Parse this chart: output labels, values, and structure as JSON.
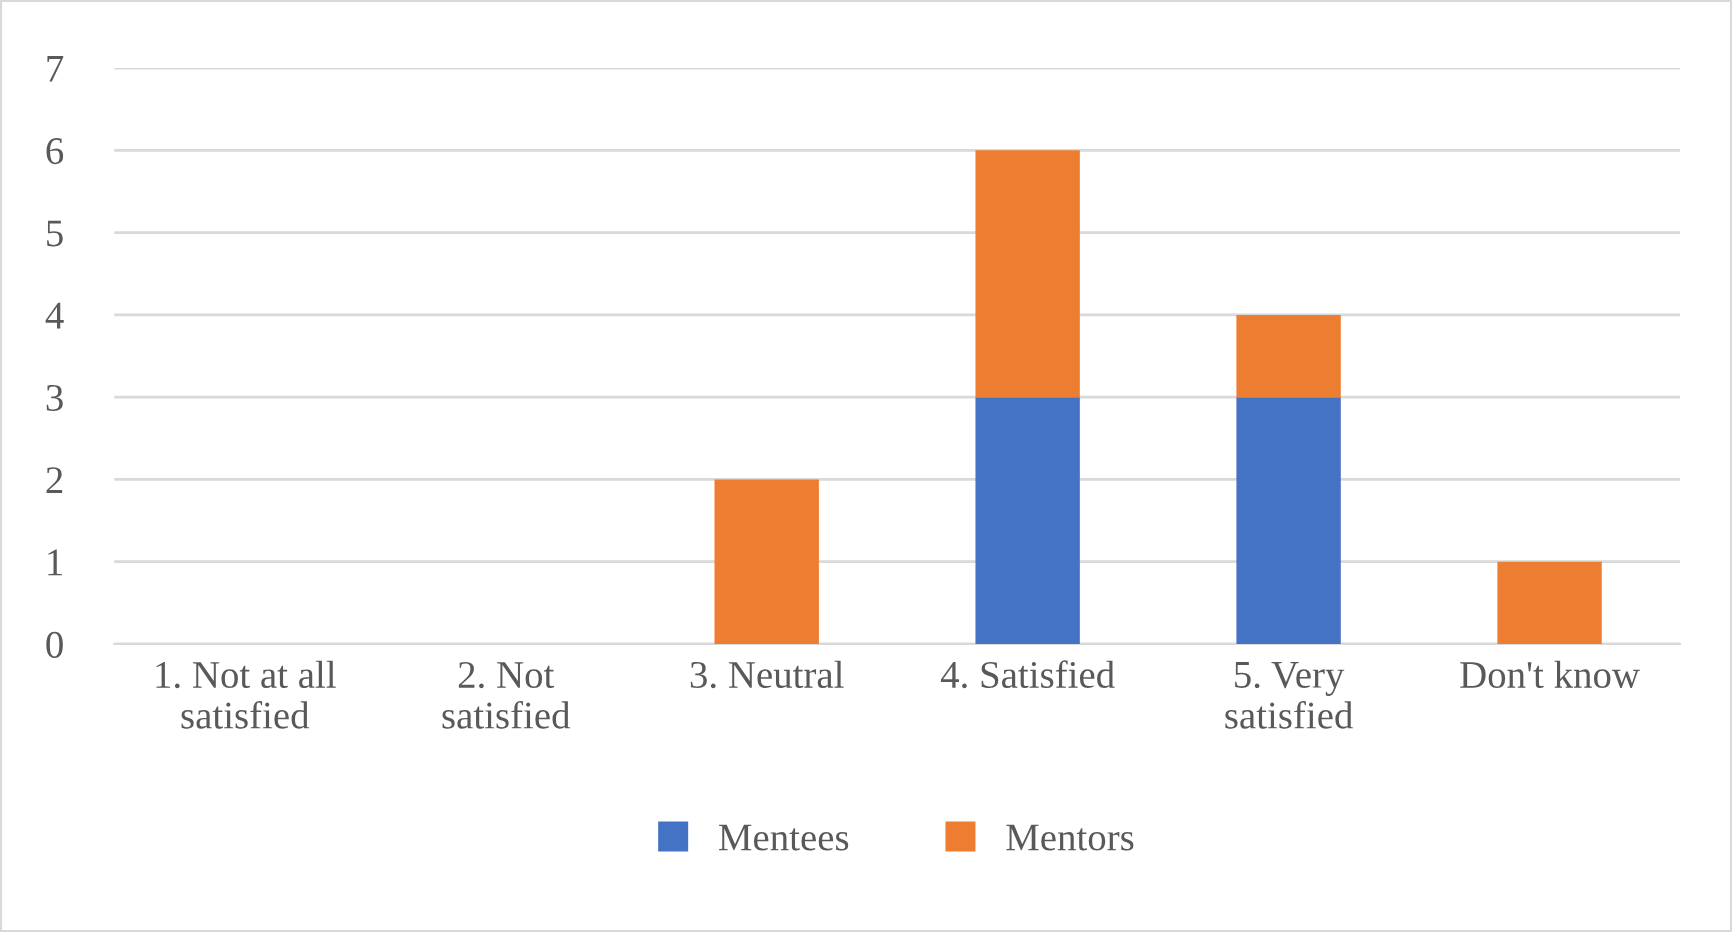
{
  "chart_data": {
    "type": "bar",
    "stacked": true,
    "categories": [
      "1. Not at all satisfied",
      "2. Not satisfied",
      "3. Neutral",
      "4. Satisfied",
      "5. Very satisfied",
      "Don't know"
    ],
    "series": [
      {
        "name": "Mentees",
        "color": "#4472c4",
        "values": [
          0,
          0,
          0,
          3,
          3,
          0
        ]
      },
      {
        "name": "Mentors",
        "color": "#ed7d31",
        "values": [
          0,
          0,
          2,
          3,
          1,
          1
        ]
      }
    ],
    "ylim": [
      0,
      7
    ],
    "yticks": [
      0,
      1,
      2,
      3,
      4,
      5,
      6,
      7
    ],
    "grid": "y",
    "legend": "bottom"
  }
}
